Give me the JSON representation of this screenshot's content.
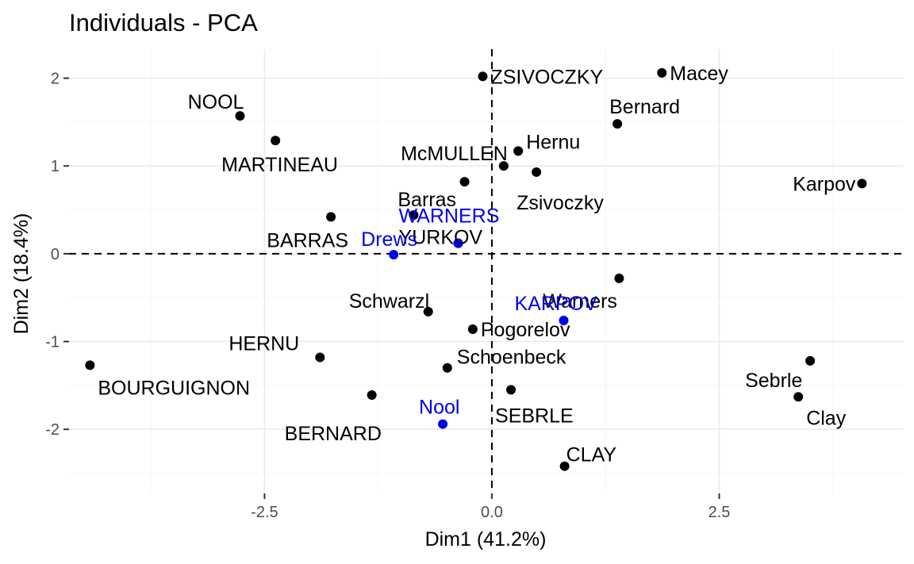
{
  "chart_data": {
    "type": "scatter",
    "title": "Individuals - PCA",
    "xlabel": "Dim1 (41.2%)",
    "ylabel": "Dim2 (18.4%)",
    "xlim": [
      -4.65,
      4.52
    ],
    "ylim": [
      -2.73,
      2.33
    ],
    "x_ticks": [
      -2.5,
      0,
      2.5
    ],
    "x_tick_labels": [
      "-2.5",
      "0.0",
      "2.5"
    ],
    "y_ticks": [
      -2,
      -1,
      0,
      1,
      2
    ],
    "y_tick_labels": [
      "-2",
      "-1",
      "0",
      "1",
      "2"
    ],
    "grid": true,
    "reference_lines": {
      "x": 0,
      "y": 0
    },
    "colors": {
      "active": "#000000",
      "supplementary": "#0000ee"
    },
    "points": [
      {
        "label": "ZSIVOCZKY",
        "x": -0.1,
        "y": 2.02,
        "group": "active"
      },
      {
        "label": "Macey",
        "x": 1.87,
        "y": 2.06,
        "group": "active"
      },
      {
        "label": "NOOL",
        "x": -2.77,
        "y": 1.57,
        "group": "active"
      },
      {
        "label": "Bernard",
        "x": 1.38,
        "y": 1.48,
        "group": "active"
      },
      {
        "label": "MARTINEAU",
        "x": -2.38,
        "y": 1.29,
        "group": "active"
      },
      {
        "label": "Hernu",
        "x": 0.29,
        "y": 1.17,
        "group": "active"
      },
      {
        "label": "McMULLEN",
        "x": 0.13,
        "y": 1.0,
        "group": "active"
      },
      {
        "label": "Zsivoczky",
        "x": 0.49,
        "y": 0.93,
        "group": "active"
      },
      {
        "label": "",
        "x": -0.3,
        "y": 0.82,
        "group": "active"
      },
      {
        "label": "Karpov",
        "x": 4.07,
        "y": 0.8,
        "group": "active"
      },
      {
        "label": "Barras",
        "x": -0.86,
        "y": 0.44,
        "group": "active"
      },
      {
        "label": "BARRAS",
        "x": -1.77,
        "y": 0.42,
        "group": "active"
      },
      {
        "label": "YURKOV",
        "x": -0.37,
        "y": 0.12,
        "group": "supplementary",
        "label_color": "active"
      },
      {
        "label": "WARNERS",
        "x": -0.37,
        "y": 0.12,
        "group": "supplementary",
        "label_dx": 12,
        "label_dy": -34
      },
      {
        "label": "Drews",
        "x": -1.08,
        "y": -0.01,
        "group": "supplementary"
      },
      {
        "label": "Warners",
        "x": 1.4,
        "y": -0.28,
        "group": "active"
      },
      {
        "label": "Schwarzl",
        "x": -0.7,
        "y": -0.66,
        "group": "active"
      },
      {
        "label": "KARPOV",
        "x": 0.79,
        "y": -0.76,
        "group": "supplementary"
      },
      {
        "label": "Pogorelov",
        "x": -0.21,
        "y": -0.86,
        "group": "active"
      },
      {
        "label": "HERNU",
        "x": -1.89,
        "y": -1.18,
        "group": "active"
      },
      {
        "label": "Schoenbeck",
        "x": -0.49,
        "y": -1.3,
        "group": "active"
      },
      {
        "label": "BOURGUIGNON",
        "x": -4.42,
        "y": -1.27,
        "group": "active"
      },
      {
        "label": "Sebrle",
        "x": 3.5,
        "y": -1.22,
        "group": "active"
      },
      {
        "label": "SEBRLE",
        "x": 0.21,
        "y": -1.55,
        "group": "active"
      },
      {
        "label": "BERNARD",
        "x": -1.32,
        "y": -1.61,
        "group": "active"
      },
      {
        "label": "Clay",
        "x": 3.37,
        "y": -1.63,
        "group": "active"
      },
      {
        "label": "Nool",
        "x": -0.54,
        "y": -1.94,
        "group": "supplementary"
      },
      {
        "label": "CLAY",
        "x": 0.8,
        "y": -2.42,
        "group": "active"
      }
    ]
  }
}
